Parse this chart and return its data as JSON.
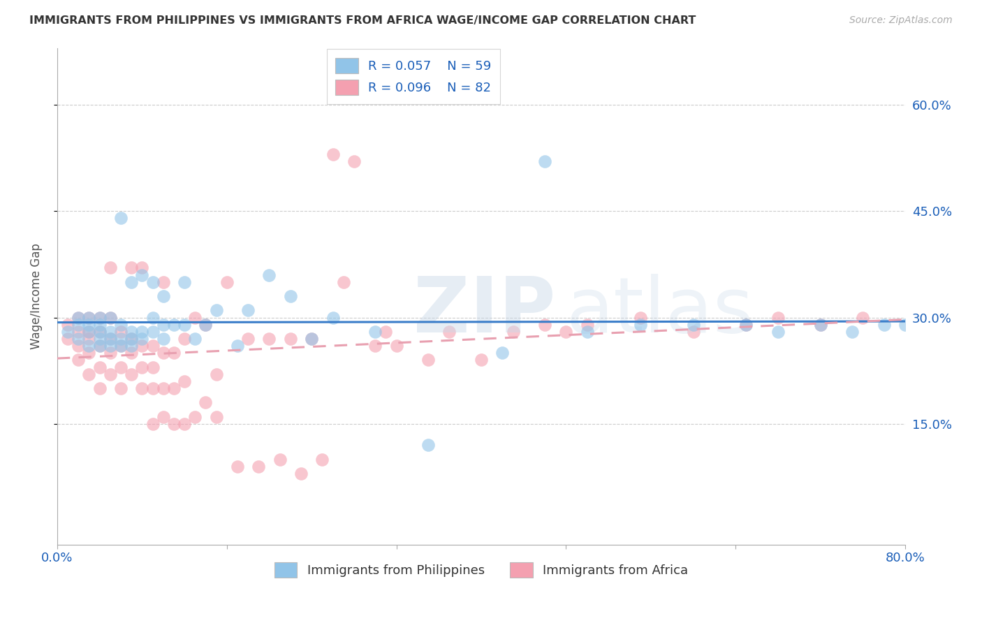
{
  "title": "IMMIGRANTS FROM PHILIPPINES VS IMMIGRANTS FROM AFRICA WAGE/INCOME GAP CORRELATION CHART",
  "source": "Source: ZipAtlas.com",
  "ylabel": "Wage/Income Gap",
  "ytick_labels": [
    "15.0%",
    "30.0%",
    "45.0%",
    "60.0%"
  ],
  "ytick_values": [
    0.15,
    0.3,
    0.45,
    0.6
  ],
  "xlim": [
    0.0,
    0.8
  ],
  "ylim": [
    -0.02,
    0.68
  ],
  "color_philippines": "#91c4e8",
  "color_africa": "#f4a0b0",
  "color_label": "#1a5eb8",
  "background_color": "#ffffff",
  "grid_color": "#cccccc",
  "philippines_x": [
    0.01,
    0.02,
    0.02,
    0.02,
    0.03,
    0.03,
    0.03,
    0.03,
    0.04,
    0.04,
    0.04,
    0.04,
    0.04,
    0.05,
    0.05,
    0.05,
    0.05,
    0.06,
    0.06,
    0.06,
    0.06,
    0.07,
    0.07,
    0.07,
    0.07,
    0.08,
    0.08,
    0.08,
    0.09,
    0.09,
    0.09,
    0.1,
    0.1,
    0.1,
    0.11,
    0.12,
    0.12,
    0.13,
    0.14,
    0.15,
    0.17,
    0.18,
    0.2,
    0.22,
    0.24,
    0.26,
    0.3,
    0.35,
    0.42,
    0.46,
    0.5,
    0.55,
    0.6,
    0.65,
    0.68,
    0.72,
    0.75,
    0.78,
    0.8
  ],
  "philippines_y": [
    0.28,
    0.27,
    0.29,
    0.3,
    0.26,
    0.28,
    0.29,
    0.3,
    0.26,
    0.27,
    0.28,
    0.29,
    0.3,
    0.26,
    0.27,
    0.28,
    0.3,
    0.26,
    0.27,
    0.29,
    0.44,
    0.26,
    0.27,
    0.28,
    0.35,
    0.27,
    0.28,
    0.36,
    0.28,
    0.3,
    0.35,
    0.27,
    0.29,
    0.33,
    0.29,
    0.29,
    0.35,
    0.27,
    0.29,
    0.31,
    0.26,
    0.31,
    0.36,
    0.33,
    0.27,
    0.3,
    0.28,
    0.12,
    0.25,
    0.52,
    0.28,
    0.29,
    0.29,
    0.29,
    0.28,
    0.29,
    0.28,
    0.29,
    0.29
  ],
  "africa_x": [
    0.01,
    0.01,
    0.02,
    0.02,
    0.02,
    0.02,
    0.03,
    0.03,
    0.03,
    0.03,
    0.03,
    0.04,
    0.04,
    0.04,
    0.04,
    0.04,
    0.05,
    0.05,
    0.05,
    0.05,
    0.05,
    0.06,
    0.06,
    0.06,
    0.06,
    0.07,
    0.07,
    0.07,
    0.07,
    0.08,
    0.08,
    0.08,
    0.08,
    0.09,
    0.09,
    0.09,
    0.09,
    0.1,
    0.1,
    0.1,
    0.1,
    0.11,
    0.11,
    0.11,
    0.12,
    0.12,
    0.12,
    0.13,
    0.13,
    0.14,
    0.14,
    0.15,
    0.15,
    0.16,
    0.17,
    0.18,
    0.19,
    0.2,
    0.21,
    0.22,
    0.23,
    0.24,
    0.25,
    0.26,
    0.27,
    0.28,
    0.3,
    0.31,
    0.32,
    0.35,
    0.37,
    0.4,
    0.43,
    0.46,
    0.48,
    0.5,
    0.55,
    0.6,
    0.65,
    0.68,
    0.72,
    0.76
  ],
  "africa_y": [
    0.27,
    0.29,
    0.24,
    0.26,
    0.28,
    0.3,
    0.22,
    0.25,
    0.27,
    0.28,
    0.3,
    0.2,
    0.23,
    0.26,
    0.28,
    0.3,
    0.22,
    0.25,
    0.27,
    0.3,
    0.37,
    0.2,
    0.23,
    0.26,
    0.28,
    0.22,
    0.25,
    0.27,
    0.37,
    0.2,
    0.23,
    0.26,
    0.37,
    0.15,
    0.2,
    0.23,
    0.26,
    0.16,
    0.2,
    0.25,
    0.35,
    0.15,
    0.2,
    0.25,
    0.15,
    0.21,
    0.27,
    0.16,
    0.3,
    0.18,
    0.29,
    0.16,
    0.22,
    0.35,
    0.09,
    0.27,
    0.09,
    0.27,
    0.1,
    0.27,
    0.08,
    0.27,
    0.1,
    0.53,
    0.35,
    0.52,
    0.26,
    0.28,
    0.26,
    0.24,
    0.28,
    0.24,
    0.28,
    0.29,
    0.28,
    0.29,
    0.3,
    0.28,
    0.29,
    0.3,
    0.29,
    0.3
  ]
}
